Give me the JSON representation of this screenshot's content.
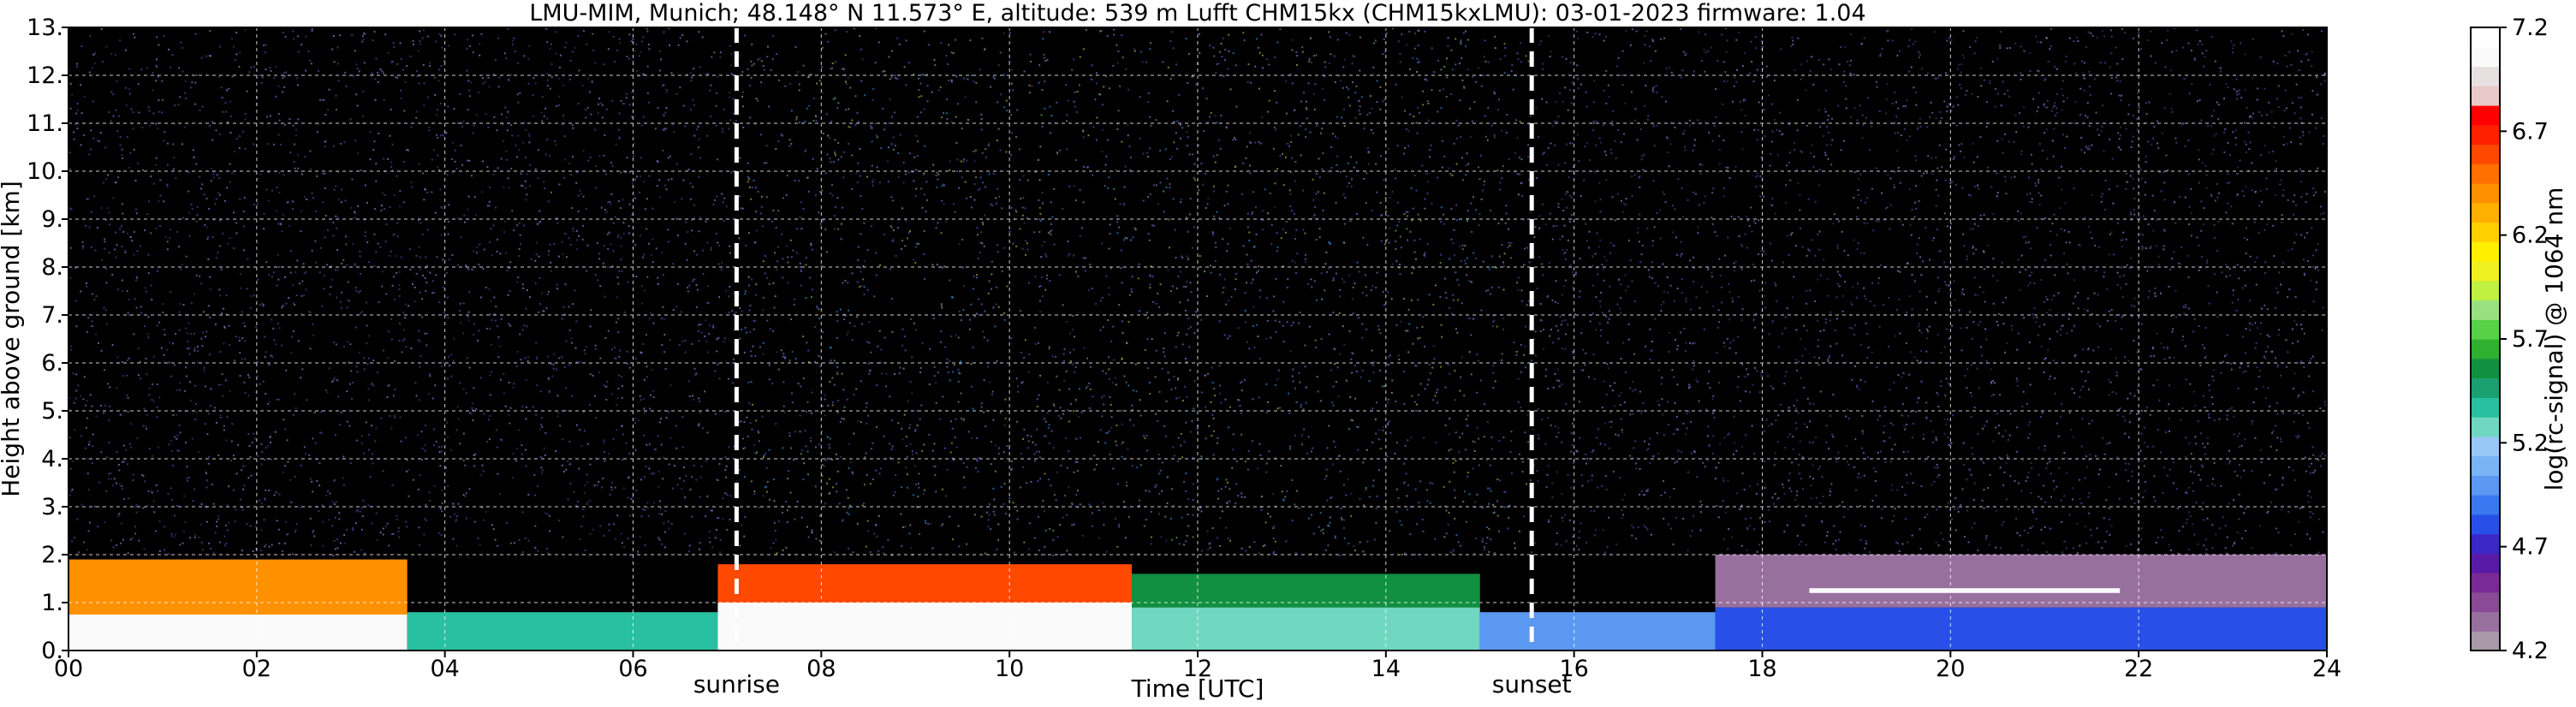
{
  "chart_data": {
    "type": "heatmap",
    "title": "LMU-MIM, Munich; 48.148° N 11.573° E, altitude: 539 m    Lufft CHM15kx (CHM15kxLMU): 03-01-2023    firmware: 1.04",
    "xlabel": "Time [UTC]",
    "ylabel": "Height above ground [km]",
    "xlim": [
      0,
      24
    ],
    "ylim": [
      0,
      13
    ],
    "x_ticks": [
      0,
      2,
      4,
      6,
      8,
      10,
      12,
      14,
      16,
      18,
      20,
      22,
      24
    ],
    "x_tick_labels": [
      "00",
      "02",
      "04",
      "06",
      "08",
      "10",
      "12",
      "14",
      "16",
      "18",
      "20",
      "22",
      "24"
    ],
    "y_ticks": [
      0,
      1,
      2,
      3,
      4,
      5,
      6,
      7,
      8,
      9,
      10,
      11,
      12,
      13
    ],
    "y_tick_labels": [
      "0.",
      "1.",
      "2.",
      "3.",
      "4.",
      "5.",
      "6.",
      "7.",
      "8.",
      "9.",
      "10.",
      "11.",
      "12.",
      "13."
    ],
    "grid": true,
    "colorbar": {
      "label": "log(rc-signal) @ 1064 nm",
      "range": [
        4.2,
        7.2
      ],
      "ticks": [
        4.2,
        4.7,
        5.2,
        5.7,
        6.2,
        6.7,
        7.2
      ],
      "tick_labels": [
        "4.2",
        "4.7",
        "5.2",
        "5.7",
        "6.2",
        "6.7",
        "7.2"
      ],
      "colors": [
        "#a898a8",
        "#98709e",
        "#8a4a96",
        "#7a2a94",
        "#5a1aa8",
        "#3a28c8",
        "#2850e8",
        "#3a78f0",
        "#5a98f2",
        "#7ab4f4",
        "#98c8f6",
        "#70d8c0",
        "#28c0a0",
        "#1aa070",
        "#109040",
        "#30b030",
        "#58d048",
        "#98e080",
        "#c0f040",
        "#f0f020",
        "#fff000",
        "#ffd000",
        "#ffb000",
        "#ff9000",
        "#ff7000",
        "#ff4800",
        "#ff2000",
        "#ff0000",
        "#e8c8c8",
        "#e8e0e0",
        "#fafafa",
        "#ffffff"
      ]
    },
    "events": [
      {
        "label": "sunrise",
        "time": 7.1
      },
      {
        "label": "sunset",
        "time": 15.55
      }
    ],
    "noise_background_color": "#000000",
    "layers": [
      {
        "t0": 0.0,
        "t1": 3.6,
        "bottom": 0.0,
        "top": 0.75,
        "value": 7.1
      },
      {
        "t0": 0.0,
        "t1": 3.6,
        "bottom": 0.75,
        "top": 1.9,
        "value": 6.4
      },
      {
        "t0": 3.6,
        "t1": 6.9,
        "bottom": 0.0,
        "top": 0.8,
        "value": 5.4
      },
      {
        "t0": 6.9,
        "t1": 11.3,
        "bottom": 0.0,
        "top": 1.0,
        "value": 7.1
      },
      {
        "t0": 6.9,
        "t1": 11.3,
        "bottom": 1.0,
        "top": 1.8,
        "value": 6.6
      },
      {
        "t0": 11.3,
        "t1": 15.0,
        "bottom": 0.0,
        "top": 0.9,
        "value": 5.3
      },
      {
        "t0": 11.3,
        "t1": 15.0,
        "bottom": 0.9,
        "top": 1.6,
        "value": 5.6
      },
      {
        "t0": 15.0,
        "t1": 17.5,
        "bottom": 0.0,
        "top": 0.8,
        "value": 5.0
      },
      {
        "t0": 17.5,
        "t1": 24.0,
        "bottom": 0.0,
        "top": 0.9,
        "value": 4.8
      },
      {
        "t0": 17.5,
        "t1": 24.0,
        "bottom": 0.9,
        "top": 2.0,
        "value": 4.3
      },
      {
        "t0": 18.5,
        "t1": 21.8,
        "bottom": 1.2,
        "top": 1.3,
        "value": 7.1
      }
    ]
  }
}
